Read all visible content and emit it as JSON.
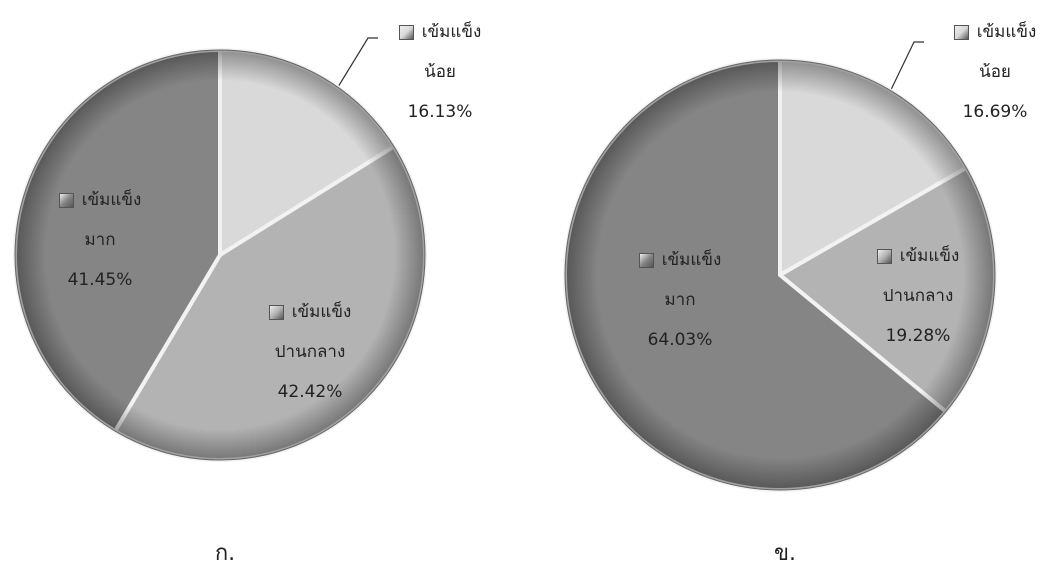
{
  "chart_data": [
    {
      "type": "pie",
      "caption": "ก.",
      "categories": [
        "เข้มแข็ง น้อย",
        "เข้มแข็ง ปานกลาง",
        "เข้มแข็ง มาก"
      ],
      "values": [
        16.13,
        42.42,
        41.45
      ],
      "value_labels": [
        "16.13%",
        "42.42%",
        "41.45%"
      ],
      "colors": [
        "#d9d9d9",
        "#b3b3b3",
        "#858585"
      ]
    },
    {
      "type": "pie",
      "caption": "ข.",
      "categories": [
        "เข้มแข็ง น้อย",
        "เข้มแข็ง ปานกลาง",
        "เข้มแข็ง มาก"
      ],
      "values": [
        16.69,
        19.28,
        64.03
      ],
      "value_labels": [
        "16.69%",
        "19.28%",
        "64.03%"
      ],
      "colors": [
        "#d9d9d9",
        "#b3b3b3",
        "#858585"
      ]
    }
  ]
}
